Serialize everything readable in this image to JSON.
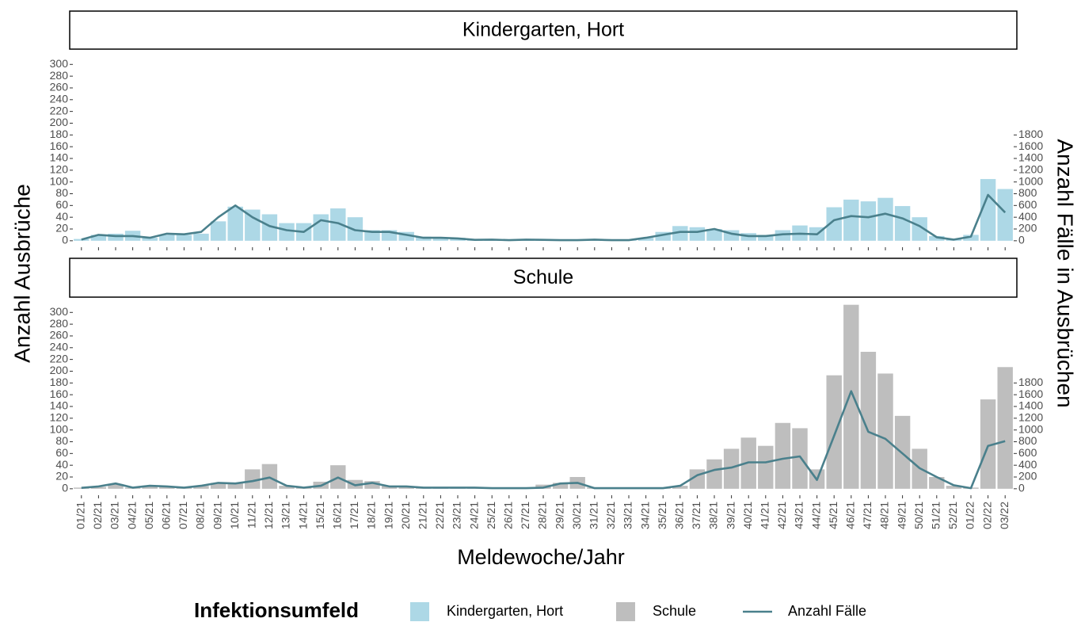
{
  "labels": {
    "ylabel": "Anzahl Ausbrüche",
    "y2label": "Anzahl Fälle in Ausbrüchen",
    "xlabel": "Meldewoche/Jahr",
    "legend_title": "Infektionsumfeld"
  },
  "chart_data": [
    {
      "type": "bar",
      "title": "Kindergarten, Hort",
      "categories": [
        "01/21",
        "02/21",
        "03/21",
        "04/21",
        "05/21",
        "06/21",
        "07/21",
        "08/21",
        "09/21",
        "10/21",
        "11/21",
        "12/21",
        "13/21",
        "14/21",
        "15/21",
        "16/21",
        "17/21",
        "18/21",
        "19/21",
        "20/21",
        "21/21",
        "22/21",
        "23/21",
        "24/21",
        "25/21",
        "26/21",
        "27/21",
        "28/21",
        "29/21",
        "30/21",
        "31/21",
        "32/21",
        "33/21",
        "34/21",
        "35/21",
        "36/21",
        "37/21",
        "38/21",
        "39/21",
        "40/21",
        "41/21",
        "42/21",
        "43/21",
        "44/21",
        "45/21",
        "46/21",
        "47/21",
        "48/21",
        "49/21",
        "50/21",
        "51/21",
        "52/21",
        "01/22",
        "02/22",
        "03/22"
      ],
      "series": [
        {
          "name": "Kindergarten, Hort",
          "type": "bar",
          "color": "#add8e6",
          "values": [
            3,
            10,
            12,
            17,
            5,
            10,
            10,
            12,
            33,
            58,
            53,
            45,
            30,
            30,
            45,
            55,
            40,
            18,
            18,
            15,
            7,
            5,
            5,
            2,
            3,
            2,
            3,
            3,
            2,
            2,
            3,
            2,
            2,
            5,
            15,
            25,
            23,
            20,
            18,
            13,
            10,
            18,
            26,
            23,
            57,
            70,
            67,
            73,
            59,
            40,
            8,
            3,
            10,
            105,
            88
          ]
        },
        {
          "name": "Anzahl Fälle",
          "type": "line",
          "axis": "y2",
          "color": "#4a808c",
          "values": [
            20,
            100,
            80,
            80,
            50,
            120,
            110,
            150,
            400,
            600,
            400,
            250,
            180,
            150,
            350,
            300,
            180,
            150,
            150,
            100,
            50,
            50,
            40,
            15,
            20,
            10,
            20,
            15,
            10,
            10,
            20,
            10,
            10,
            50,
            100,
            150,
            150,
            200,
            120,
            80,
            80,
            110,
            120,
            110,
            350,
            420,
            400,
            460,
            380,
            250,
            60,
            20,
            70,
            780,
            480
          ]
        }
      ],
      "ylim": [
        -11,
        326
      ],
      "yticks": [
        0,
        20,
        40,
        60,
        80,
        100,
        120,
        140,
        160,
        180,
        200,
        220,
        240,
        260,
        280,
        300
      ],
      "y2lim": [
        -110,
        3260
      ],
      "y2ticks": [
        0,
        200,
        400,
        600,
        800,
        1000,
        1200,
        1400,
        1600,
        1800
      ]
    },
    {
      "type": "bar",
      "title": "Schule",
      "categories": [
        "01/21",
        "02/21",
        "03/21",
        "04/21",
        "05/21",
        "06/21",
        "07/21",
        "08/21",
        "09/21",
        "10/21",
        "11/21",
        "12/21",
        "13/21",
        "14/21",
        "15/21",
        "16/21",
        "17/21",
        "18/21",
        "19/21",
        "20/21",
        "21/21",
        "22/21",
        "23/21",
        "24/21",
        "25/21",
        "26/21",
        "27/21",
        "28/21",
        "29/21",
        "30/21",
        "31/21",
        "32/21",
        "33/21",
        "34/21",
        "35/21",
        "36/21",
        "37/21",
        "38/21",
        "39/21",
        "40/21",
        "41/21",
        "42/21",
        "43/21",
        "44/21",
        "45/21",
        "46/21",
        "47/21",
        "48/21",
        "49/21",
        "50/21",
        "51/21",
        "52/21",
        "01/22",
        "02/22",
        "03/22"
      ],
      "series": [
        {
          "name": "Schule",
          "type": "bar",
          "color": "#bebebe",
          "values": [
            2,
            3,
            8,
            2,
            5,
            4,
            3,
            5,
            10,
            10,
            33,
            42,
            5,
            3,
            12,
            40,
            15,
            13,
            5,
            4,
            3,
            3,
            3,
            3,
            2,
            2,
            2,
            7,
            10,
            20,
            2,
            2,
            2,
            2,
            2,
            5,
            33,
            50,
            68,
            87,
            73,
            112,
            103,
            33,
            193,
            313,
            233,
            196,
            124,
            68,
            20,
            5,
            2,
            152,
            207
          ]
        },
        {
          "name": "Anzahl Fälle",
          "type": "line",
          "axis": "y2",
          "color": "#4a808c",
          "values": [
            15,
            40,
            90,
            20,
            50,
            40,
            20,
            50,
            100,
            90,
            130,
            190,
            50,
            20,
            50,
            190,
            60,
            100,
            40,
            40,
            20,
            20,
            20,
            20,
            10,
            10,
            10,
            20,
            90,
            100,
            10,
            10,
            10,
            10,
            10,
            50,
            230,
            320,
            360,
            450,
            450,
            510,
            550,
            150,
            900,
            1660,
            970,
            850,
            600,
            350,
            200,
            60,
            10,
            730,
            810
          ]
        }
      ],
      "ylim": [
        -11,
        326
      ],
      "yticks": [
        0,
        20,
        40,
        60,
        80,
        100,
        120,
        140,
        160,
        180,
        200,
        220,
        240,
        260,
        280,
        300
      ],
      "y2lim": [
        -110,
        3260
      ],
      "y2ticks": [
        0,
        200,
        400,
        600,
        800,
        1000,
        1200,
        1400,
        1600,
        1800
      ]
    }
  ]
}
